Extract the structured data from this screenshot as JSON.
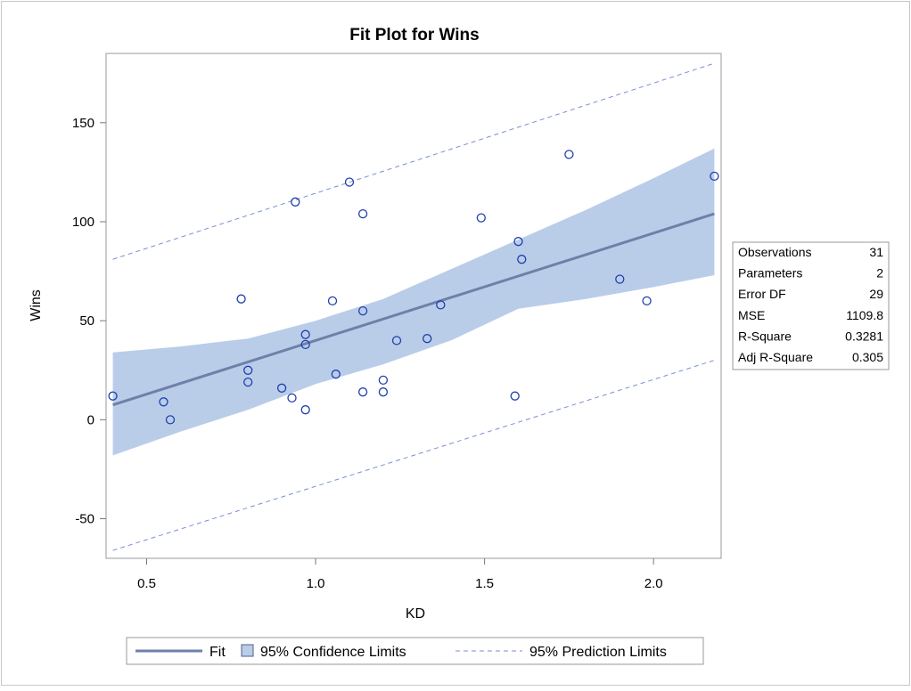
{
  "chart_data": {
    "type": "scatter",
    "title": "Fit Plot for Wins",
    "xlabel": "KD",
    "ylabel": "Wins",
    "xlim": [
      0.38,
      2.2
    ],
    "ylim": [
      -70,
      185
    ],
    "xticks": [
      0.5,
      1.0,
      1.5,
      2.0
    ],
    "xtick_labels": [
      "0.5",
      "1.0",
      "1.5",
      "2.0"
    ],
    "yticks": [
      -50,
      0,
      50,
      100,
      150
    ],
    "ytick_labels": [
      "-50",
      "0",
      "50",
      "100",
      "150"
    ],
    "grid": false,
    "points": [
      {
        "x": 0.4,
        "y": 12
      },
      {
        "x": 0.55,
        "y": 9
      },
      {
        "x": 0.57,
        "y": 0
      },
      {
        "x": 0.78,
        "y": 61
      },
      {
        "x": 0.8,
        "y": 25
      },
      {
        "x": 0.8,
        "y": 19
      },
      {
        "x": 0.9,
        "y": 16
      },
      {
        "x": 0.93,
        "y": 11
      },
      {
        "x": 0.94,
        "y": 110
      },
      {
        "x": 0.97,
        "y": 43
      },
      {
        "x": 0.97,
        "y": 38
      },
      {
        "x": 0.97,
        "y": 5
      },
      {
        "x": 1.05,
        "y": 60
      },
      {
        "x": 1.06,
        "y": 23
      },
      {
        "x": 1.1,
        "y": 120
      },
      {
        "x": 1.14,
        "y": 104
      },
      {
        "x": 1.14,
        "y": 55
      },
      {
        "x": 1.14,
        "y": 14
      },
      {
        "x": 1.2,
        "y": 20
      },
      {
        "x": 1.2,
        "y": 14
      },
      {
        "x": 1.24,
        "y": 40
      },
      {
        "x": 1.33,
        "y": 41
      },
      {
        "x": 1.37,
        "y": 58
      },
      {
        "x": 1.49,
        "y": 102
      },
      {
        "x": 1.59,
        "y": 12
      },
      {
        "x": 1.6,
        "y": 90
      },
      {
        "x": 1.61,
        "y": 81
      },
      {
        "x": 1.75,
        "y": 134
      },
      {
        "x": 1.9,
        "y": 71
      },
      {
        "x": 1.98,
        "y": 60
      },
      {
        "x": 2.18,
        "y": 123
      }
    ],
    "fit": {
      "x": [
        0.4,
        2.18
      ],
      "y": [
        7.5,
        104
      ]
    },
    "confidence_limits": {
      "x": [
        0.4,
        0.6,
        0.8,
        1.0,
        1.2,
        1.4,
        1.6,
        1.8,
        2.0,
        2.18
      ],
      "lower": [
        -18,
        -6,
        5,
        18,
        28,
        40,
        56,
        61,
        67,
        73
      ],
      "upper": [
        34,
        37,
        41,
        50,
        61,
        76,
        91,
        106,
        122,
        137
      ]
    },
    "prediction_limits": {
      "x": [
        0.4,
        2.18
      ],
      "lower": [
        -66,
        30
      ],
      "upper": [
        81,
        180
      ]
    },
    "legend": {
      "position": "bottom",
      "entries": [
        "Fit",
        "95% Confidence Limits",
        "95% Prediction Limits"
      ]
    },
    "stats": [
      {
        "label": "Observations",
        "value": "31"
      },
      {
        "label": "Parameters",
        "value": "2"
      },
      {
        "label": "Error DF",
        "value": "29"
      },
      {
        "label": "MSE",
        "value": "1109.8"
      },
      {
        "label": "R-Square",
        "value": "0.3281"
      },
      {
        "label": "Adj R-Square",
        "value": "0.305"
      }
    ],
    "colors": {
      "fit_line": "#6f80a8",
      "confidence_band": "#b9cde9",
      "prediction_line": "#7c8dd6",
      "marker": "#1f3fae",
      "frame": "#9a9a9a"
    }
  }
}
